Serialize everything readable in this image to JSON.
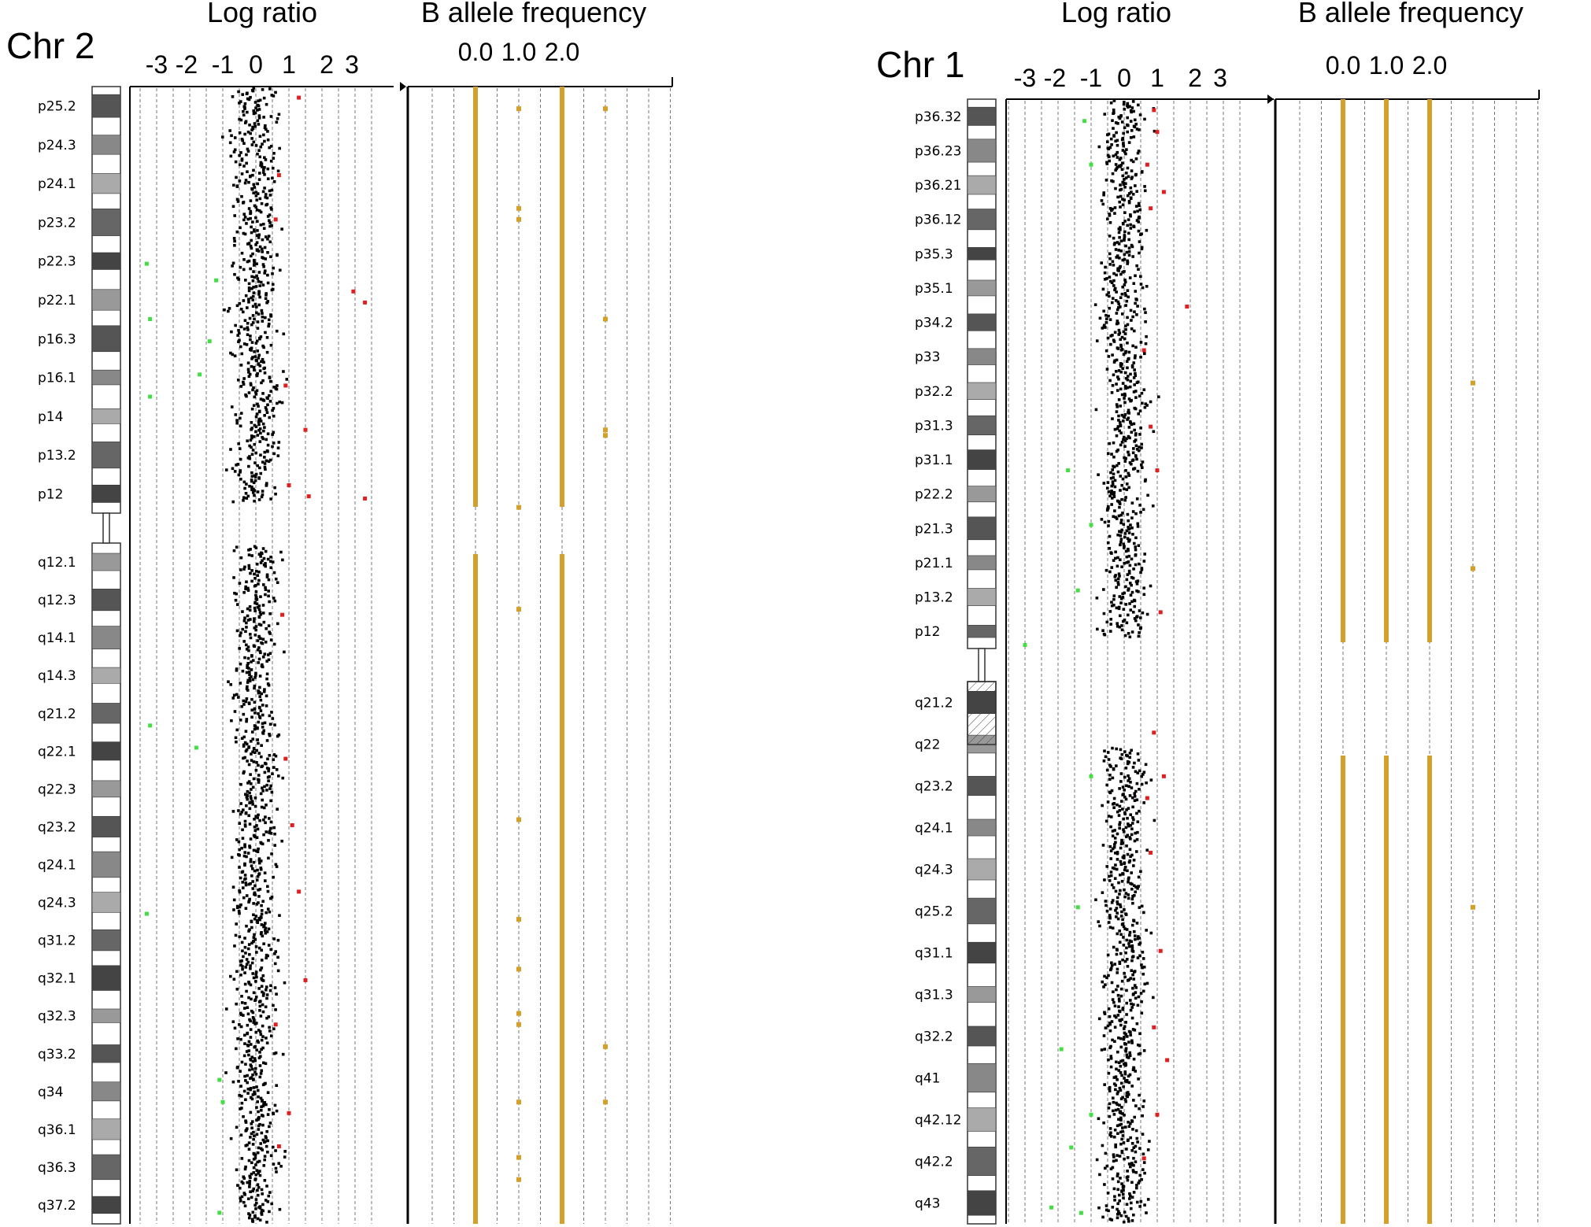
{
  "colors": {
    "logratio_normal": "#000000",
    "logratio_gain": "#e02020",
    "logratio_loss": "#44dd44",
    "baf": "#d4a02c",
    "axis": "#000000",
    "grid": "#777777"
  },
  "chart_data": [
    {
      "type": "scatter",
      "chromosome_label": "Chr 2",
      "panels": [
        {
          "title": "Log ratio",
          "ticks": [
            "-3",
            "-2",
            "-1",
            "0",
            "1",
            "2",
            "3"
          ],
          "xlim": [
            -3.5,
            4.0
          ]
        },
        {
          "title": "B allele frequency",
          "ticks": [
            "0.0",
            "1.0",
            "2.0"
          ],
          "xlim": [
            -1.0,
            3.5
          ]
        }
      ],
      "baf_tracks": [
        0.0,
        1.0,
        2.0
      ],
      "bands": [
        "p25.2",
        "p24.3",
        "p24.1",
        "p23.2",
        "p22.3",
        "p22.1",
        "p16.3",
        "p16.1",
        "p14",
        "p13.2",
        "p12",
        "q12.1",
        "q12.3",
        "q14.1",
        "q14.3",
        "q21.2",
        "q22.1",
        "q22.3",
        "q23.2",
        "q24.1",
        "q24.3",
        "q31.2",
        "q32.1",
        "q32.3",
        "q33.2",
        "q34",
        "q36.1",
        "q36.3",
        "q37.2"
      ],
      "centromere_fraction": 0.355,
      "gain_points": [
        {
          "pos": 0.01,
          "value": 1.3
        },
        {
          "pos": 0.08,
          "value": 0.7
        },
        {
          "pos": 0.12,
          "value": 0.6
        },
        {
          "pos": 0.185,
          "value": 2.95
        },
        {
          "pos": 0.195,
          "value": 3.3
        },
        {
          "pos": 0.27,
          "value": 0.9
        },
        {
          "pos": 0.31,
          "value": 1.5
        },
        {
          "pos": 0.36,
          "value": 1.0
        },
        {
          "pos": 0.37,
          "value": 1.6
        },
        {
          "pos": 0.372,
          "value": 3.3
        },
        {
          "pos": 0.45,
          "value": 0.8
        },
        {
          "pos": 0.58,
          "value": 0.9
        },
        {
          "pos": 0.64,
          "value": 1.1
        },
        {
          "pos": 0.7,
          "value": 1.3
        },
        {
          "pos": 0.78,
          "value": 1.5
        },
        {
          "pos": 0.82,
          "value": 0.6
        },
        {
          "pos": 0.9,
          "value": 1.0
        },
        {
          "pos": 0.93,
          "value": 0.7
        }
      ],
      "loss_points": [
        {
          "pos": 0.16,
          "value": -3.3
        },
        {
          "pos": 0.21,
          "value": -3.2
        },
        {
          "pos": 0.175,
          "value": -1.2
        },
        {
          "pos": 0.23,
          "value": -1.4
        },
        {
          "pos": 0.26,
          "value": -1.7
        },
        {
          "pos": 0.28,
          "value": -3.2
        },
        {
          "pos": 0.55,
          "value": -3.2
        },
        {
          "pos": 0.57,
          "value": -1.8
        },
        {
          "pos": 0.72,
          "value": -3.3
        },
        {
          "pos": 0.87,
          "value": -1.1
        },
        {
          "pos": 0.89,
          "value": -1.0
        },
        {
          "pos": 0.99,
          "value": -1.1
        }
      ],
      "baf_het_points": [
        {
          "pos": 0.02,
          "value": 1.0
        },
        {
          "pos": 0.11,
          "value": 1.0
        },
        {
          "pos": 0.12,
          "value": 1.0
        },
        {
          "pos": 0.38,
          "value": 1.0
        },
        {
          "pos": 0.445,
          "value": 1.0
        },
        {
          "pos": 0.635,
          "value": 1.0
        },
        {
          "pos": 0.725,
          "value": 1.0
        },
        {
          "pos": 0.77,
          "value": 1.0
        },
        {
          "pos": 0.81,
          "value": 1.0
        },
        {
          "pos": 0.82,
          "value": 1.0
        },
        {
          "pos": 0.89,
          "value": 1.0
        },
        {
          "pos": 0.94,
          "value": 1.0
        },
        {
          "pos": 0.96,
          "value": 1.0
        }
      ],
      "baf_outlier_points": [
        {
          "pos": 0.02,
          "value": 3.0
        },
        {
          "pos": 0.21,
          "value": 3.0
        },
        {
          "pos": 0.31,
          "value": 3.0
        },
        {
          "pos": 0.315,
          "value": 3.0
        },
        {
          "pos": 0.84,
          "value": 3.0
        },
        {
          "pos": 0.89,
          "value": 3.0
        }
      ]
    },
    {
      "type": "scatter",
      "chromosome_label": "Chr 1",
      "panels": [
        {
          "title": "Log ratio",
          "ticks": [
            "-3",
            "-2",
            "-1",
            "0",
            "1",
            "2",
            "3"
          ],
          "xlim": [
            -3.5,
            4.0
          ]
        },
        {
          "title": "B allele frequency",
          "ticks": [
            "0.0",
            "1.0",
            "2.0"
          ],
          "xlim": [
            -1.0,
            3.5
          ]
        }
      ],
      "baf_tracks": [
        0.0,
        1.0,
        2.0
      ],
      "bands": [
        "p36.32",
        "p36.23",
        "p36.21",
        "p36.12",
        "p35.3",
        "p35.1",
        "p34.2",
        "p33",
        "p32.2",
        "p31.3",
        "p31.1",
        "p22.2",
        "p21.3",
        "p21.1",
        "p13.2",
        "p12",
        "q21.2",
        "q22",
        "q23.2",
        "q24.1",
        "q24.3",
        "q25.2",
        "q31.1",
        "q31.3",
        "q32.2",
        "q41",
        "q42.12",
        "q42.2",
        "q43"
      ],
      "centromere_fraction": 0.5,
      "gain_points": [
        {
          "pos": 0.01,
          "value": 0.9
        },
        {
          "pos": 0.03,
          "value": 1.0
        },
        {
          "pos": 0.06,
          "value": 0.7
        },
        {
          "pos": 0.085,
          "value": 1.2
        },
        {
          "pos": 0.1,
          "value": 0.8
        },
        {
          "pos": 0.19,
          "value": 1.9
        },
        {
          "pos": 0.23,
          "value": 0.6
        },
        {
          "pos": 0.3,
          "value": 0.8
        },
        {
          "pos": 0.34,
          "value": 1.0
        },
        {
          "pos": 0.47,
          "value": 1.1
        },
        {
          "pos": 0.55,
          "value": 0.9
        },
        {
          "pos": 0.59,
          "value": 1.2
        },
        {
          "pos": 0.61,
          "value": 0.7
        },
        {
          "pos": 0.66,
          "value": 0.8
        },
        {
          "pos": 0.75,
          "value": 1.1
        },
        {
          "pos": 0.82,
          "value": 0.9
        },
        {
          "pos": 0.85,
          "value": 1.3
        },
        {
          "pos": 0.9,
          "value": 1.0
        },
        {
          "pos": 0.94,
          "value": 0.6
        }
      ],
      "loss_points": [
        {
          "pos": 0.02,
          "value": -1.2
        },
        {
          "pos": 0.06,
          "value": -1.0
        },
        {
          "pos": 0.34,
          "value": -1.7
        },
        {
          "pos": 0.39,
          "value": -1.0
        },
        {
          "pos": 0.45,
          "value": -1.4
        },
        {
          "pos": 0.5,
          "value": -3.0
        },
        {
          "pos": 0.59,
          "value": -1.0
        },
        {
          "pos": 0.71,
          "value": -1.4
        },
        {
          "pos": 0.84,
          "value": -1.9
        },
        {
          "pos": 0.9,
          "value": -1.0
        },
        {
          "pos": 0.93,
          "value": -1.6
        },
        {
          "pos": 0.985,
          "value": -2.2
        },
        {
          "pos": 0.99,
          "value": -1.3
        }
      ],
      "baf_het_points": [],
      "baf_outlier_points": [
        {
          "pos": 0.26,
          "value": 3.0
        },
        {
          "pos": 0.43,
          "value": 3.0
        },
        {
          "pos": 0.71,
          "value": 3.0
        }
      ]
    }
  ]
}
